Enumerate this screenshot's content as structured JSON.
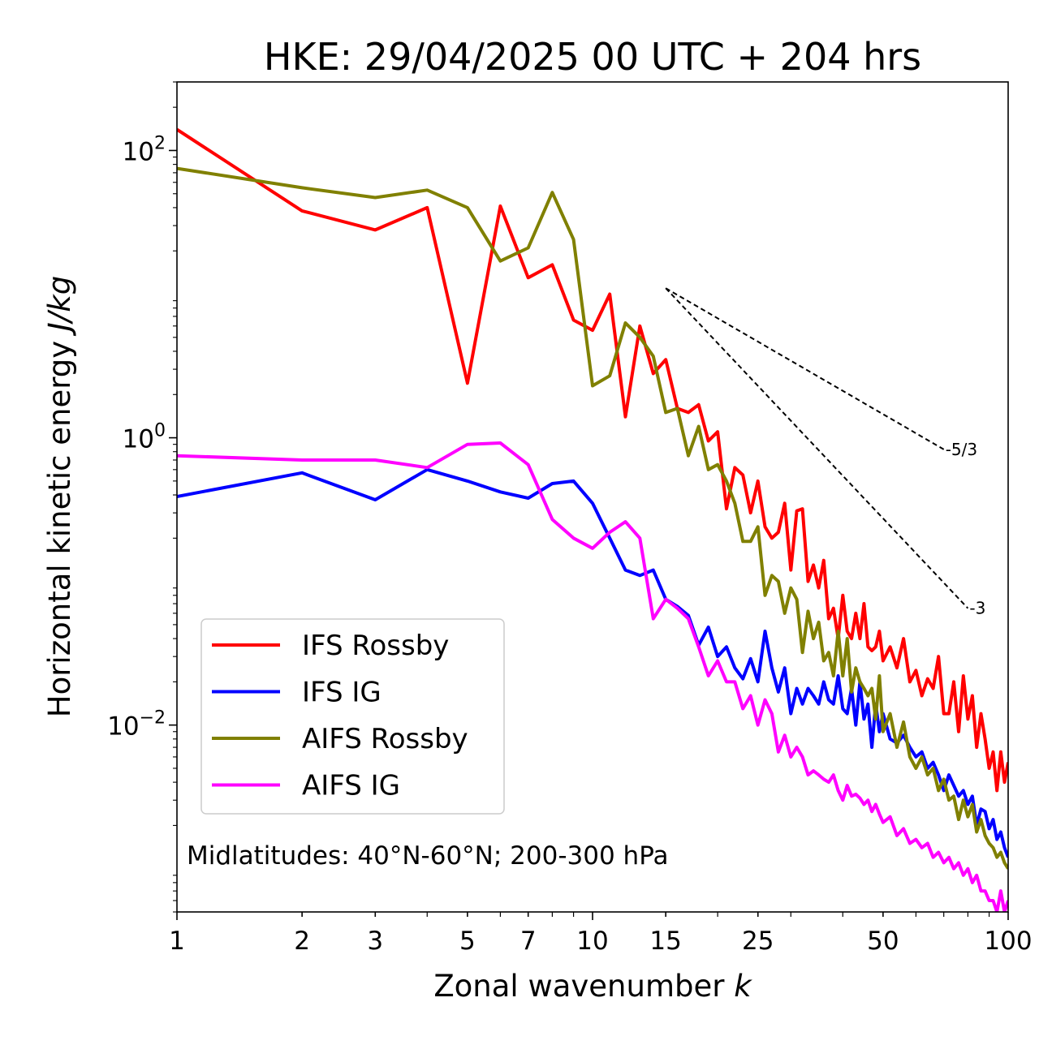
{
  "chart_data": {
    "type": "line",
    "title": "HKE: 29/04/2025 00 UTC + 204 hrs",
    "xlabel_text": "Zonal wavenumber ",
    "xlabel_var": "k",
    "ylabel_text": "Horizontal kinetic energy ",
    "ylabel_unit": "J/kg",
    "xscale": "log",
    "yscale": "log",
    "xlim": [
      1,
      100
    ],
    "ylim": [
      0.0005,
      300
    ],
    "x_ticks": [
      {
        "value": 1,
        "label": "1"
      },
      {
        "value": 2,
        "label": "2"
      },
      {
        "value": 3,
        "label": "3"
      },
      {
        "value": 5,
        "label": "5"
      },
      {
        "value": 7,
        "label": "7"
      },
      {
        "value": 10,
        "label": "10"
      },
      {
        "value": 15,
        "label": "15"
      },
      {
        "value": 25,
        "label": "25"
      },
      {
        "value": 50,
        "label": "50"
      },
      {
        "value": 100,
        "label": "100"
      }
    ],
    "y_ticks": [
      {
        "value": 100,
        "base": "10",
        "exp": "2"
      },
      {
        "value": 1,
        "base": "10",
        "exp": "0"
      },
      {
        "value": 0.01,
        "base": "10",
        "exp": "−2"
      }
    ],
    "legend_position": "lower-left",
    "annotation": "Midlatitudes: 40°N-60°N; 200-300 hPa",
    "slope_lines": [
      {
        "label": "-5/3",
        "x": [
          15,
          70
        ],
        "y": [
          11.0,
          0.83
        ]
      },
      {
        "label": "-3",
        "x": [
          15,
          80
        ],
        "y": [
          11.0,
          0.065
        ]
      }
    ],
    "series": [
      {
        "name": "IFS Rossby",
        "color": "#ff0000",
        "x": [
          1,
          2,
          3,
          4,
          5,
          6,
          7,
          8,
          9,
          10,
          11,
          12,
          13,
          14,
          15,
          16,
          17,
          18,
          19,
          20,
          21,
          22,
          23,
          24,
          25,
          26,
          27,
          28,
          29,
          30,
          31,
          32,
          33,
          34,
          35,
          36,
          37,
          38,
          39,
          40,
          41,
          42,
          43,
          44,
          45,
          46,
          47,
          48,
          49,
          50,
          52,
          54,
          56,
          58,
          60,
          62,
          64,
          66,
          68,
          70,
          72,
          74,
          76,
          78,
          80,
          82,
          84,
          86,
          88,
          90,
          92,
          94,
          96,
          98,
          100
        ],
        "y": [
          140,
          38,
          28,
          40,
          2.4,
          41,
          13,
          16,
          6.6,
          5.6,
          10,
          1.4,
          6.0,
          2.8,
          3.5,
          1.6,
          1.5,
          1.7,
          0.95,
          1.1,
          0.32,
          0.62,
          0.55,
          0.3,
          0.5,
          0.24,
          0.2,
          0.22,
          0.35,
          0.12,
          0.31,
          0.32,
          0.1,
          0.13,
          0.09,
          0.14,
          0.055,
          0.065,
          0.04,
          0.08,
          0.045,
          0.04,
          0.06,
          0.04,
          0.07,
          0.035,
          0.033,
          0.035,
          0.045,
          0.028,
          0.035,
          0.025,
          0.04,
          0.02,
          0.024,
          0.016,
          0.021,
          0.018,
          0.03,
          0.012,
          0.012,
          0.02,
          0.009,
          0.022,
          0.011,
          0.016,
          0.007,
          0.012,
          0.008,
          0.005,
          0.0065,
          0.0035,
          0.0065,
          0.004,
          0.0055
        ]
      },
      {
        "name": "IFS IG",
        "color": "#0000ff",
        "x": [
          1,
          2,
          3,
          4,
          5,
          6,
          7,
          8,
          9,
          10,
          11,
          12,
          13,
          14,
          15,
          16,
          17,
          18,
          19,
          20,
          21,
          22,
          23,
          24,
          25,
          26,
          27,
          28,
          29,
          30,
          31,
          32,
          33,
          34,
          35,
          36,
          37,
          38,
          39,
          40,
          41,
          42,
          43,
          44,
          45,
          46,
          47,
          48,
          49,
          50,
          52,
          54,
          56,
          58,
          60,
          62,
          64,
          66,
          68,
          70,
          72,
          74,
          76,
          78,
          80,
          82,
          84,
          86,
          88,
          90,
          92,
          94,
          96,
          98,
          100
        ],
        "y": [
          0.39,
          0.57,
          0.37,
          0.6,
          0.5,
          0.42,
          0.38,
          0.48,
          0.5,
          0.35,
          0.2,
          0.12,
          0.11,
          0.12,
          0.075,
          0.067,
          0.058,
          0.036,
          0.048,
          0.03,
          0.035,
          0.025,
          0.021,
          0.029,
          0.02,
          0.045,
          0.025,
          0.017,
          0.025,
          0.012,
          0.018,
          0.014,
          0.018,
          0.016,
          0.014,
          0.02,
          0.015,
          0.014,
          0.022,
          0.013,
          0.012,
          0.018,
          0.01,
          0.02,
          0.011,
          0.014,
          0.007,
          0.014,
          0.009,
          0.012,
          0.008,
          0.0075,
          0.0085,
          0.007,
          0.006,
          0.0065,
          0.005,
          0.0055,
          0.0045,
          0.0035,
          0.0045,
          0.0038,
          0.0032,
          0.0035,
          0.0028,
          0.0032,
          0.002,
          0.0026,
          0.0025,
          0.0019,
          0.0022,
          0.0016,
          0.0018,
          0.0014,
          0.0012
        ]
      },
      {
        "name": "AIFS Rossby",
        "color": "#808000",
        "x": [
          1,
          2,
          3,
          4,
          5,
          6,
          7,
          8,
          9,
          10,
          11,
          12,
          13,
          14,
          15,
          16,
          17,
          18,
          19,
          20,
          21,
          22,
          23,
          24,
          25,
          26,
          27,
          28,
          29,
          30,
          31,
          32,
          33,
          34,
          35,
          36,
          37,
          38,
          39,
          40,
          41,
          42,
          43,
          44,
          45,
          46,
          47,
          48,
          49,
          50,
          52,
          54,
          56,
          58,
          60,
          62,
          64,
          66,
          68,
          70,
          72,
          74,
          76,
          78,
          80,
          82,
          84,
          86,
          88,
          90,
          92,
          94,
          96,
          98,
          100
        ],
        "y": [
          75,
          55,
          47,
          53,
          40,
          17,
          21,
          51,
          24,
          2.3,
          2.7,
          6.3,
          5.0,
          3.7,
          1.5,
          1.6,
          0.75,
          1.2,
          0.6,
          0.65,
          0.5,
          0.35,
          0.19,
          0.19,
          0.24,
          0.08,
          0.11,
          0.1,
          0.06,
          0.09,
          0.075,
          0.032,
          0.062,
          0.04,
          0.052,
          0.028,
          0.032,
          0.022,
          0.045,
          0.022,
          0.04,
          0.017,
          0.025,
          0.02,
          0.018,
          0.016,
          0.018,
          0.011,
          0.022,
          0.009,
          0.012,
          0.007,
          0.0105,
          0.006,
          0.005,
          0.006,
          0.0045,
          0.005,
          0.0035,
          0.0042,
          0.003,
          0.0032,
          0.0022,
          0.003,
          0.0023,
          0.0028,
          0.0018,
          0.0022,
          0.0017,
          0.0015,
          0.0014,
          0.0012,
          0.0013,
          0.0011,
          0.001
        ]
      },
      {
        "name": "AIFS IG",
        "color": "#ff00ff",
        "x": [
          1,
          2,
          3,
          4,
          5,
          6,
          7,
          8,
          9,
          10,
          11,
          12,
          13,
          14,
          15,
          16,
          17,
          18,
          19,
          20,
          21,
          22,
          23,
          24,
          25,
          26,
          27,
          28,
          29,
          30,
          31,
          32,
          33,
          34,
          35,
          36,
          37,
          38,
          39,
          40,
          41,
          42,
          43,
          44,
          45,
          46,
          47,
          48,
          49,
          50,
          52,
          54,
          56,
          58,
          60,
          62,
          64,
          66,
          68,
          70,
          72,
          74,
          76,
          78,
          80,
          82,
          84,
          86,
          88,
          90,
          92,
          94,
          96,
          98,
          100
        ],
        "y": [
          0.75,
          0.7,
          0.7,
          0.62,
          0.9,
          0.92,
          0.65,
          0.27,
          0.2,
          0.17,
          0.22,
          0.26,
          0.2,
          0.055,
          0.075,
          0.065,
          0.055,
          0.035,
          0.022,
          0.028,
          0.02,
          0.02,
          0.013,
          0.016,
          0.01,
          0.015,
          0.012,
          0.0065,
          0.0085,
          0.006,
          0.007,
          0.006,
          0.0045,
          0.0048,
          0.0045,
          0.0042,
          0.004,
          0.0045,
          0.0035,
          0.003,
          0.0038,
          0.0032,
          0.0033,
          0.0031,
          0.0028,
          0.003,
          0.0025,
          0.0028,
          0.0024,
          0.0021,
          0.0023,
          0.0017,
          0.0019,
          0.0015,
          0.0016,
          0.0014,
          0.0015,
          0.0012,
          0.0013,
          0.0011,
          0.0012,
          0.001,
          0.0011,
          0.0009,
          0.001,
          0.0008,
          0.0009,
          0.0007,
          0.0007,
          0.0006,
          0.0006,
          0.0005,
          0.0007,
          0.0005,
          0.0006
        ]
      }
    ]
  }
}
